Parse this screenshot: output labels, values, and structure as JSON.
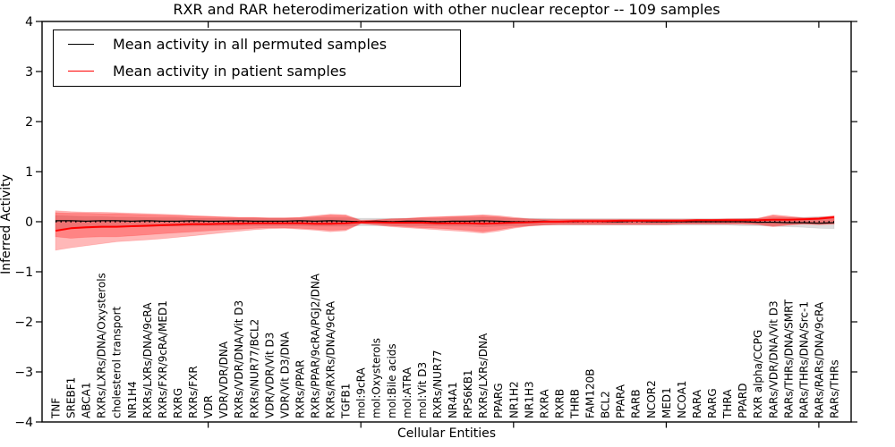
{
  "chart_data": {
    "type": "line",
    "title": "RXR and RAR heterodimerization with other nuclear receptor -- 109 samples",
    "xlabel": "Cellular Entities",
    "ylabel": "Inferred Activity",
    "ylim": [
      -4,
      4
    ],
    "yticks": [
      -4,
      -3,
      -2,
      -1,
      0,
      1,
      2,
      3,
      4
    ],
    "x_major_tick_indices": [
      10,
      20,
      30,
      40,
      50
    ],
    "grid": false,
    "legend_position": "upper left",
    "zero_line": {
      "style": "dotted",
      "color": "#000000",
      "value": 0
    },
    "categories": [
      "TNF",
      "SREBF1",
      "ABCA1",
      "RXRs/LXRs/DNA/Oxysterols",
      "cholesterol transport",
      "NR1H4",
      "RXRs/LXRs/DNA/9cRA",
      "RXRs/FXR/9cRA/MED1",
      "RXRG",
      "RXRs/FXR",
      "VDR",
      "VDR/VDR/DNA",
      "RXRs/VDR/DNA/Vit D3",
      "RXRs/NUR77/BCL2",
      "VDR/VDR/Vit D3",
      "VDR/Vit D3/DNA",
      "RXRs/PPAR",
      "RXRs/PPAR/9cRA/PGJ2/DNA",
      "RXRs/RXRs/DNA/9cRA",
      "TGFB1",
      "mol:9cRA",
      "mol:Oxysterols",
      "mol:Bile acids",
      "mol:ATRA",
      "mol:Vit D3",
      "RXRs/NUR77",
      "NR4A1",
      "RPS6KB1",
      "RXRs/LXRs/DNA",
      "PPARG",
      "NR1H2",
      "NR1H3",
      "RXRA",
      "RXRB",
      "THRB",
      "FAM120B",
      "BCL2",
      "PPARA",
      "RARB",
      "NCOR2",
      "MED1",
      "NCOA1",
      "RARA",
      "RARG",
      "THRA",
      "PPARD",
      "RXR alpha/CCPG",
      "RARs/VDR/DNA/Vit D3",
      "RARs/THRs/DNA/SMRT",
      "RARs/THRs/DNA/Src-1",
      "RARs/RARs/DNA/9cRA",
      "RARs/THRs"
    ],
    "series": [
      {
        "name": "Mean activity in all permuted samples",
        "color": "#000000",
        "line_width": 1.2,
        "values": [
          0.02,
          0.02,
          0.01,
          0.02,
          0.02,
          0.01,
          0.02,
          0.01,
          0.01,
          0.02,
          0.01,
          0.01,
          0.02,
          0.01,
          0.01,
          0.01,
          0.02,
          0.01,
          0.02,
          0.01,
          0.0,
          0.01,
          0.0,
          0.01,
          0.01,
          0.0,
          0.01,
          0.01,
          0.02,
          0.01,
          0.0,
          0.0,
          0.01,
          0.0,
          0.0,
          0.01,
          0.0,
          0.0,
          0.01,
          0.0,
          0.0,
          0.0,
          0.0,
          0.0,
          0.0,
          0.0,
          -0.01,
          -0.01,
          -0.02,
          -0.02,
          -0.03,
          -0.02
        ]
      },
      {
        "name": "Mean activity in patient samples",
        "color": "#ff0000",
        "line_width": 2,
        "values": [
          -0.18,
          -0.13,
          -0.11,
          -0.1,
          -0.1,
          -0.09,
          -0.08,
          -0.07,
          -0.06,
          -0.05,
          -0.05,
          -0.04,
          -0.04,
          -0.03,
          -0.03,
          -0.03,
          -0.03,
          -0.04,
          -0.04,
          -0.03,
          -0.01,
          -0.01,
          -0.02,
          -0.02,
          -0.02,
          -0.03,
          -0.03,
          -0.03,
          -0.04,
          -0.03,
          -0.02,
          -0.01,
          0.0,
          0.0,
          0.01,
          0.01,
          0.01,
          0.02,
          0.02,
          0.02,
          0.02,
          0.02,
          0.03,
          0.03,
          0.03,
          0.03,
          0.03,
          0.04,
          0.04,
          0.05,
          0.06,
          0.09
        ]
      }
    ],
    "bands": [
      {
        "name": "permuted-samples-range",
        "color": "#000000",
        "opacity": 0.13,
        "upper": [
          0.12,
          0.11,
          0.1,
          0.1,
          0.09,
          0.09,
          0.08,
          0.08,
          0.08,
          0.07,
          0.07,
          0.07,
          0.07,
          0.07,
          0.07,
          0.07,
          0.07,
          0.08,
          0.08,
          0.08,
          0.07,
          0.07,
          0.07,
          0.07,
          0.07,
          0.07,
          0.08,
          0.08,
          0.09,
          0.08,
          0.07,
          0.07,
          0.07,
          0.06,
          0.06,
          0.06,
          0.06,
          0.06,
          0.06,
          0.06,
          0.06,
          0.06,
          0.06,
          0.06,
          0.06,
          0.07,
          0.07,
          0.08,
          0.09,
          0.09,
          0.1,
          0.1
        ],
        "lower": [
          -0.15,
          -0.14,
          -0.13,
          -0.12,
          -0.11,
          -0.1,
          -0.1,
          -0.09,
          -0.09,
          -0.09,
          -0.08,
          -0.08,
          -0.08,
          -0.08,
          -0.08,
          -0.08,
          -0.08,
          -0.09,
          -0.09,
          -0.09,
          -0.08,
          -0.08,
          -0.08,
          -0.08,
          -0.08,
          -0.08,
          -0.09,
          -0.09,
          -0.1,
          -0.09,
          -0.08,
          -0.08,
          -0.07,
          -0.07,
          -0.07,
          -0.07,
          -0.07,
          -0.07,
          -0.07,
          -0.07,
          -0.07,
          -0.07,
          -0.07,
          -0.07,
          -0.07,
          -0.08,
          -0.08,
          -0.09,
          -0.1,
          -0.11,
          -0.13,
          -0.14
        ]
      },
      {
        "name": "patient-samples-outer-range",
        "color": "#ff0000",
        "opacity": 0.28,
        "upper": [
          0.22,
          0.2,
          0.19,
          0.19,
          0.18,
          0.17,
          0.16,
          0.15,
          0.14,
          0.12,
          0.11,
          0.1,
          0.09,
          0.09,
          0.08,
          0.08,
          0.09,
          0.12,
          0.15,
          0.14,
          0.03,
          0.04,
          0.06,
          0.07,
          0.09,
          0.1,
          0.11,
          0.12,
          0.14,
          0.12,
          0.09,
          0.06,
          0.05,
          0.05,
          0.05,
          0.05,
          0.05,
          0.05,
          0.05,
          0.05,
          0.05,
          0.05,
          0.05,
          0.05,
          0.06,
          0.06,
          0.07,
          0.14,
          0.11,
          0.08,
          0.09,
          0.12
        ],
        "lower": [
          -0.57,
          -0.52,
          -0.48,
          -0.44,
          -0.4,
          -0.38,
          -0.36,
          -0.34,
          -0.31,
          -0.28,
          -0.25,
          -0.22,
          -0.19,
          -0.16,
          -0.14,
          -0.13,
          -0.15,
          -0.17,
          -0.2,
          -0.18,
          -0.04,
          -0.07,
          -0.1,
          -0.12,
          -0.14,
          -0.16,
          -0.18,
          -0.2,
          -0.23,
          -0.19,
          -0.13,
          -0.09,
          -0.07,
          -0.06,
          -0.06,
          -0.06,
          -0.06,
          -0.06,
          -0.06,
          -0.06,
          -0.06,
          -0.05,
          -0.05,
          -0.05,
          -0.05,
          -0.05,
          -0.06,
          -0.1,
          -0.07,
          -0.05,
          -0.06,
          -0.05
        ]
      },
      {
        "name": "patient-samples-inner-range",
        "color": "#ff0000",
        "opacity": 0.28,
        "upper": [
          0.18,
          0.17,
          0.17,
          0.16,
          0.16,
          0.15,
          0.14,
          0.13,
          0.12,
          0.11,
          0.1,
          0.09,
          0.08,
          0.08,
          0.07,
          0.07,
          0.08,
          0.1,
          0.13,
          0.12,
          0.02,
          0.03,
          0.05,
          0.06,
          0.08,
          0.09,
          0.1,
          0.11,
          0.12,
          0.1,
          0.07,
          0.05,
          0.04,
          0.04,
          0.04,
          0.04,
          0.04,
          0.04,
          0.04,
          0.04,
          0.04,
          0.04,
          0.04,
          0.04,
          0.05,
          0.05,
          0.06,
          0.12,
          0.09,
          0.07,
          0.08,
          0.11
        ],
        "lower": [
          -0.3,
          -0.33,
          -0.31,
          -0.3,
          -0.3,
          -0.28,
          -0.26,
          -0.24,
          -0.22,
          -0.2,
          -0.18,
          -0.16,
          -0.15,
          -0.13,
          -0.12,
          -0.12,
          -0.13,
          -0.15,
          -0.17,
          -0.16,
          -0.03,
          -0.05,
          -0.08,
          -0.1,
          -0.12,
          -0.13,
          -0.15,
          -0.17,
          -0.2,
          -0.16,
          -0.11,
          -0.08,
          -0.06,
          -0.05,
          -0.05,
          -0.05,
          -0.05,
          -0.05,
          -0.05,
          -0.05,
          -0.05,
          -0.04,
          -0.04,
          -0.04,
          -0.04,
          -0.04,
          -0.05,
          -0.08,
          -0.06,
          -0.04,
          -0.05,
          -0.04
        ]
      }
    ]
  }
}
